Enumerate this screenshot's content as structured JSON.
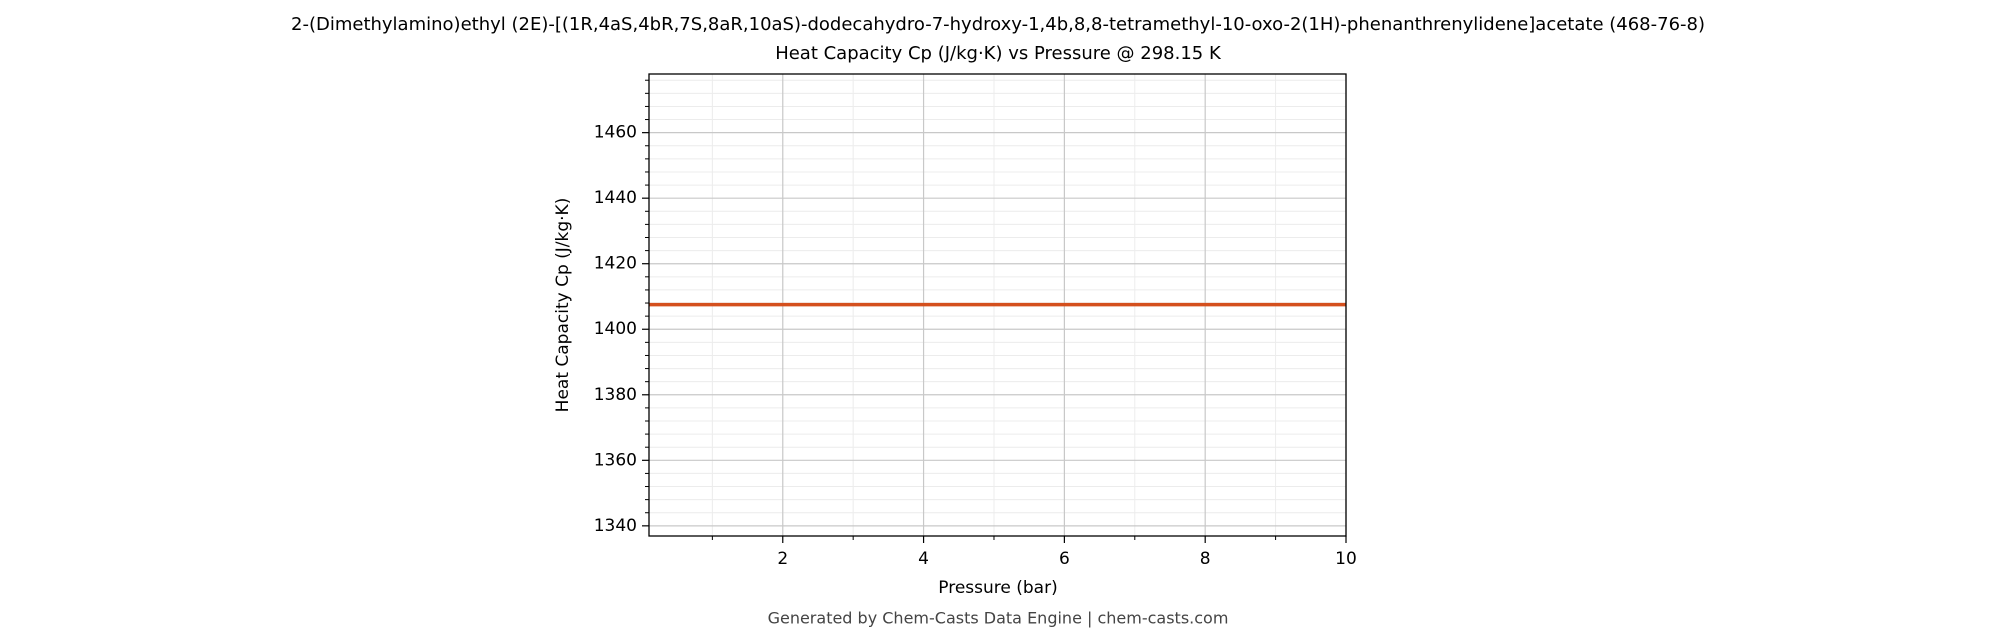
{
  "chart_data": {
    "type": "line",
    "title": "2-(Dimethylamino)ethyl (2E)-[(1R,4aS,4bR,7S,8aR,10aS)-dodecahydro-7-hydroxy-1,4b,8,8-tetramethyl-10-oxo-2(1H)-phenanthrenylidene]acetate (468-76-8)",
    "subtitle": "Heat Capacity Cp (J/kg·K) vs Pressure @ 298.15 K",
    "x_label": "Pressure (bar)",
    "y_label": "Heat Capacity Cp (J/kg·K)",
    "footer": "Generated by Chem-Casts Data Engine | chem-casts.com",
    "x": [
      0.1,
      10
    ],
    "series": [
      {
        "name": "Heat Capacity Cp",
        "color": "#d4501e",
        "values": [
          1407.5,
          1407.5
        ]
      }
    ],
    "xlim": [
      0.1,
      10
    ],
    "ylim": [
      1336.9,
      1477.9
    ],
    "xticks": [
      2,
      4,
      6,
      8,
      10
    ],
    "yticks": [
      1340,
      1360,
      1380,
      1400,
      1420,
      1440,
      1460
    ],
    "xminorticks": [
      1,
      3,
      5,
      7,
      9
    ],
    "yminorticks": [
      1344,
      1348,
      1352,
      1356,
      1364,
      1368,
      1372,
      1376,
      1384,
      1388,
      1392,
      1396,
      1404,
      1408,
      1412,
      1416,
      1424,
      1428,
      1432,
      1436,
      1444,
      1448,
      1452,
      1456,
      1464,
      1468,
      1472,
      1476
    ],
    "grid": true
  }
}
